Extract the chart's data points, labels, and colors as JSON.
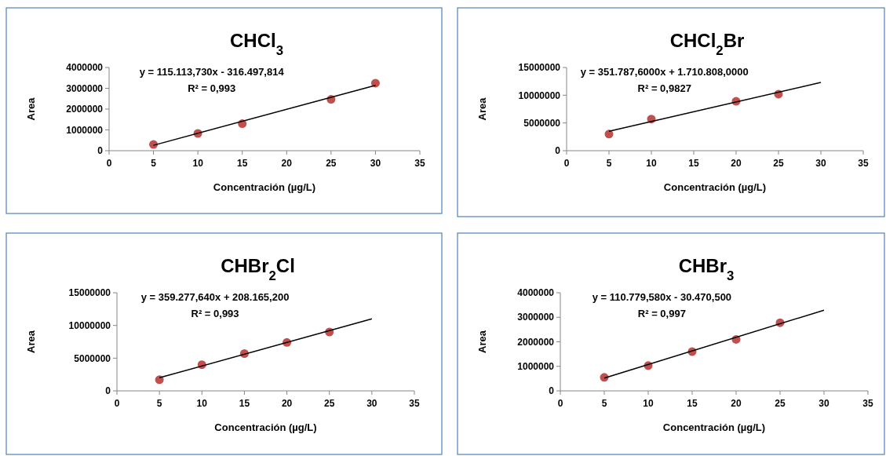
{
  "chart_data": [
    {
      "type": "scatter",
      "title": "CHCl$_{3}$",
      "xlabel": "Concentración (µg/L)",
      "ylabel": "Area",
      "annotations": [
        "y = 115.113,730x - 316.497,814",
        "R² = 0,993"
      ],
      "xlim": [
        0,
        35
      ],
      "xticks": [
        0,
        5,
        10,
        15,
        20,
        25,
        30,
        35
      ],
      "ylim": [
        0,
        4000000
      ],
      "yticks": [
        0,
        1000000,
        2000000,
        3000000,
        4000000
      ],
      "series": [
        {
          "x": [
            5,
            10,
            15,
            25,
            30
          ],
          "values": [
            300000,
            830000,
            1300000,
            2470000,
            3250000
          ],
          "color": "#c0504d",
          "marker": "circle"
        },
        {
          "type": "line",
          "x": [
            5,
            30
          ],
          "values": [
            260000,
            3140000
          ],
          "color": "#000000",
          "marker": "none"
        }
      ]
    },
    {
      "type": "scatter",
      "title": "CHCl$_{2}$Br",
      "xlabel": "Concentración (µg/L)",
      "ylabel": "Area",
      "annotations": [
        "y = 351.787,6000x + 1.710.808,0000",
        "R² = 0,9827"
      ],
      "xlim": [
        0,
        35
      ],
      "xticks": [
        0,
        5,
        10,
        15,
        20,
        25,
        30,
        35
      ],
      "ylim": [
        0,
        15000000
      ],
      "yticks": [
        0,
        5000000,
        10000000,
        15000000
      ],
      "series": [
        {
          "x": [
            5,
            10,
            20,
            25
          ],
          "values": [
            3000000,
            5700000,
            8900000,
            10200000
          ],
          "color": "#c0504d",
          "marker": "circle"
        },
        {
          "type": "line",
          "x": [
            5,
            30
          ],
          "values": [
            3500000,
            12300000
          ],
          "color": "#000000",
          "marker": "none"
        }
      ]
    },
    {
      "type": "scatter",
      "title": "CHBr$_{2}$Cl",
      "xlabel": "Concentración (µg/L)",
      "ylabel": "Area",
      "annotations": [
        "y = 359.277,640x + 208.165,200",
        "R² = 0,993"
      ],
      "xlim": [
        0,
        35
      ],
      "xticks": [
        0,
        5,
        10,
        15,
        20,
        25,
        30,
        35
      ],
      "ylim": [
        0,
        15000000
      ],
      "yticks": [
        0,
        5000000,
        10000000,
        15000000
      ],
      "series": [
        {
          "x": [
            5,
            10,
            15,
            20,
            25
          ],
          "values": [
            1700000,
            4000000,
            5700000,
            7400000,
            9000000
          ],
          "color": "#c0504d",
          "marker": "circle"
        },
        {
          "type": "line",
          "x": [
            5,
            30
          ],
          "values": [
            2000000,
            11000000
          ],
          "color": "#000000",
          "marker": "none"
        }
      ]
    },
    {
      "type": "scatter",
      "title": "CHBr$_{3}$",
      "xlabel": "Concentración (µg/L)",
      "ylabel": "Area",
      "annotations": [
        "y = 110.779,580x - 30.470,500",
        "R² = 0,997"
      ],
      "xlim": [
        0,
        35
      ],
      "xticks": [
        0,
        5,
        10,
        15,
        20,
        25,
        30,
        35
      ],
      "ylim": [
        0,
        4000000
      ],
      "yticks": [
        0,
        1000000,
        2000000,
        3000000,
        4000000
      ],
      "series": [
        {
          "x": [
            5,
            10,
            15,
            20,
            25
          ],
          "values": [
            550000,
            1030000,
            1600000,
            2100000,
            2780000
          ],
          "color": "#c0504d",
          "marker": "circle"
        },
        {
          "type": "line",
          "x": [
            5,
            30
          ],
          "values": [
            520000,
            3290000
          ],
          "color": "#000000",
          "marker": "none"
        }
      ]
    }
  ]
}
